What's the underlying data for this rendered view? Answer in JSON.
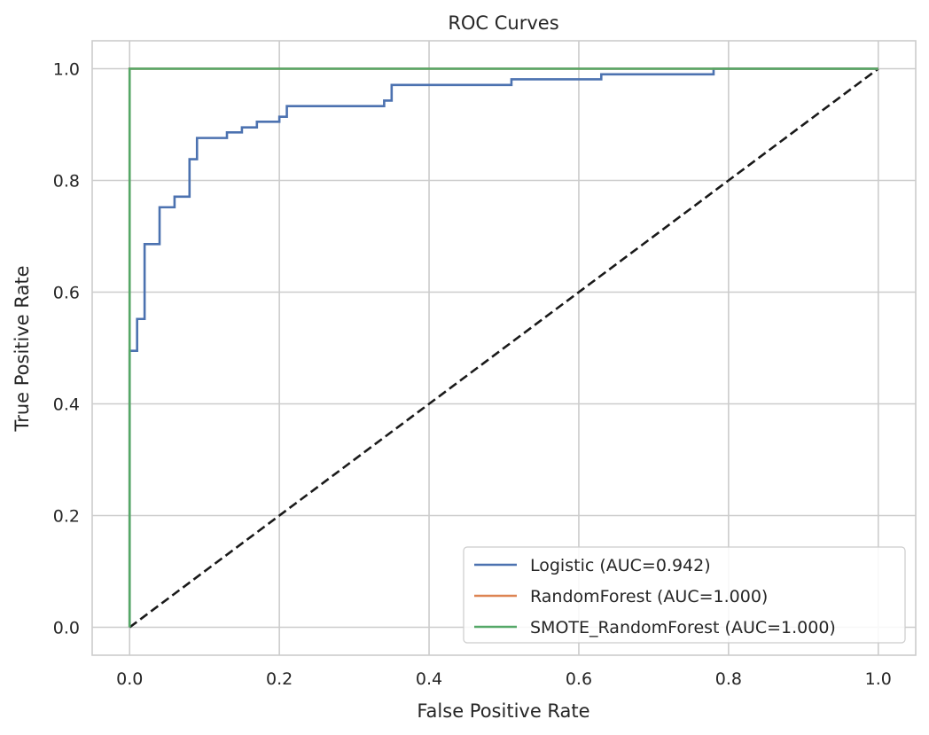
{
  "chart_data": {
    "type": "line",
    "title": "ROC Curves",
    "xlabel": "False Positive Rate",
    "ylabel": "True Positive Rate",
    "xlim": [
      -0.05,
      1.05
    ],
    "ylim": [
      -0.05,
      1.05
    ],
    "grid": true,
    "legend_position": "lower-right",
    "xticks": [
      0.0,
      0.2,
      0.4,
      0.6,
      0.8,
      1.0
    ],
    "xtick_labels": [
      "0.0",
      "0.2",
      "0.4",
      "0.6",
      "0.8",
      "1.0"
    ],
    "yticks": [
      0.0,
      0.2,
      0.4,
      0.6,
      0.8,
      1.0
    ],
    "ytick_labels": [
      "0.0",
      "0.2",
      "0.4",
      "0.6",
      "0.8",
      "1.0"
    ],
    "series": [
      {
        "name": "Logistic (AUC=0.942)",
        "color": "#4c72b0",
        "style": "solid",
        "x": [
          0.0,
          0.0,
          0.0,
          0.01,
          0.01,
          0.02,
          0.02,
          0.04,
          0.04,
          0.06,
          0.06,
          0.08,
          0.08,
          0.09,
          0.09,
          0.13,
          0.13,
          0.15,
          0.15,
          0.17,
          0.17,
          0.2,
          0.2,
          0.21,
          0.21,
          0.34,
          0.34,
          0.35,
          0.35,
          0.51,
          0.51,
          0.63,
          0.63,
          0.78,
          0.78,
          1.0
        ],
        "y": [
          0.0,
          0.495,
          0.495,
          0.495,
          0.552,
          0.552,
          0.686,
          0.686,
          0.752,
          0.752,
          0.771,
          0.771,
          0.838,
          0.838,
          0.876,
          0.876,
          0.886,
          0.886,
          0.895,
          0.895,
          0.905,
          0.905,
          0.914,
          0.914,
          0.933,
          0.933,
          0.943,
          0.943,
          0.971,
          0.971,
          0.981,
          0.981,
          0.99,
          0.99,
          1.0,
          1.0
        ]
      },
      {
        "name": "RandomForest (AUC=1.000)",
        "color": "#dd8452",
        "style": "solid",
        "x": [
          0.0,
          0.0,
          1.0
        ],
        "y": [
          0.0,
          1.0,
          1.0
        ]
      },
      {
        "name": "SMOTE_RandomForest (AUC=1.000)",
        "color": "#55a868",
        "style": "solid",
        "x": [
          0.0,
          0.0,
          1.0
        ],
        "y": [
          0.0,
          1.0,
          1.0
        ]
      },
      {
        "name": "chance",
        "color": "#1a1a1a",
        "style": "dashed",
        "in_legend": false,
        "x": [
          0.0,
          1.0
        ],
        "y": [
          0.0,
          1.0
        ]
      }
    ]
  }
}
